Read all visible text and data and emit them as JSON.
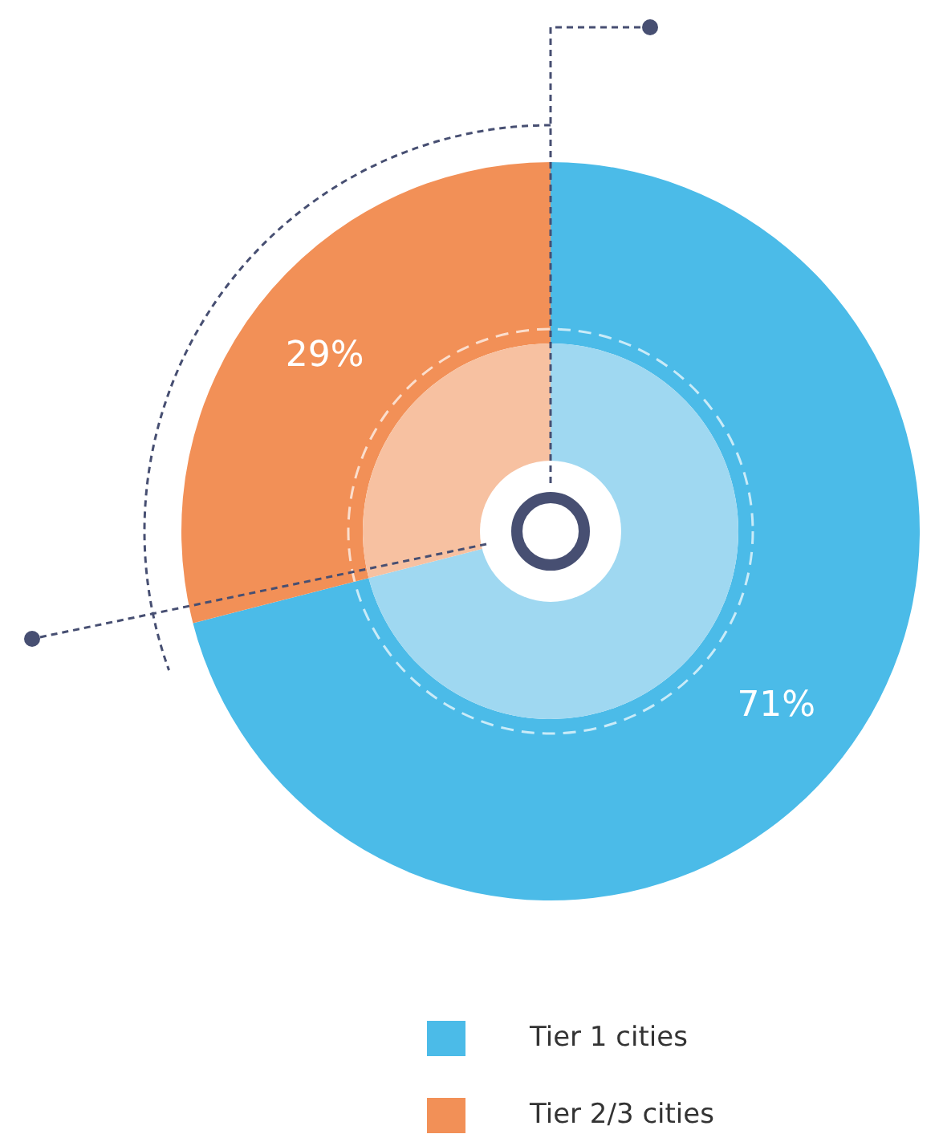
{
  "chart_data": {
    "type": "pie",
    "categories": [
      "Tier 1 cities",
      "Tier 2/3 cities"
    ],
    "series": [
      {
        "values": [
          71,
          29
        ],
        "colors": [
          "#4bbbe8",
          "#f29057"
        ],
        "value_labels": [
          "71%",
          "29%"
        ]
      },
      {
        "values": [
          71,
          29
        ],
        "colors": [
          "#9fd8f1",
          "#f7c1a1"
        ]
      }
    ],
    "legend": "bottom"
  }
}
